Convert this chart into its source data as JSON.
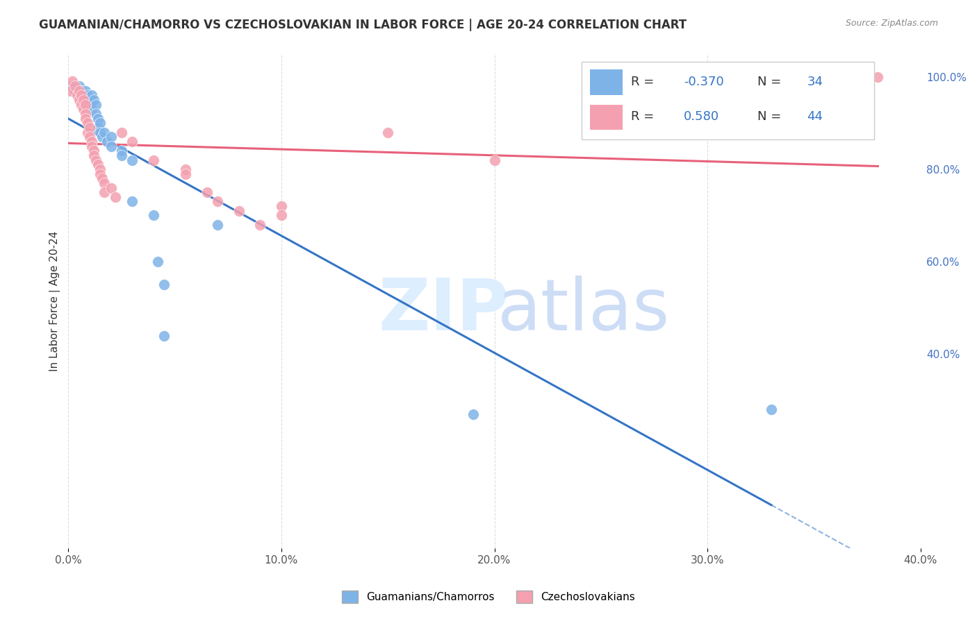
{
  "title": "GUAMANIAN/CHAMORRO VS CZECHOSLOVAKIAN IN LABOR FORCE | AGE 20-24 CORRELATION CHART",
  "source": "Source: ZipAtlas.com",
  "ylabel": "In Labor Force | Age 20-24",
  "xlim": [
    0.0,
    0.4
  ],
  "ylim": [
    0.0,
    1.05
  ],
  "xtick_labels": [
    "0.0%",
    "10.0%",
    "20.0%",
    "30.0%",
    "40.0%"
  ],
  "xtick_vals": [
    0.0,
    0.1,
    0.2,
    0.3,
    0.4
  ],
  "ytick_labels": [
    "100.0%",
    "80.0%",
    "60.0%",
    "40.0%"
  ],
  "ytick_vals": [
    1.0,
    0.8,
    0.6,
    0.4
  ],
  "blue_color": "#7EB3E8",
  "pink_color": "#F4A0B0",
  "blue_line_color": "#3575C5",
  "pink_line_color": "#E8607A",
  "legend_R_blue": "-0.370",
  "legend_N_blue": "34",
  "legend_R_pink": "0.580",
  "legend_N_pink": "44",
  "blue_points": [
    [
      0.002,
      0.98
    ],
    [
      0.003,
      0.97
    ],
    [
      0.005,
      0.98
    ],
    [
      0.006,
      0.97
    ],
    [
      0.007,
      0.96
    ],
    [
      0.008,
      0.97
    ],
    [
      0.009,
      0.96
    ],
    [
      0.01,
      0.95
    ],
    [
      0.01,
      0.94
    ],
    [
      0.011,
      0.93
    ],
    [
      0.011,
      0.96
    ],
    [
      0.012,
      0.95
    ],
    [
      0.013,
      0.94
    ],
    [
      0.013,
      0.92
    ],
    [
      0.014,
      0.91
    ],
    [
      0.014,
      0.89
    ],
    [
      0.015,
      0.9
    ],
    [
      0.015,
      0.88
    ],
    [
      0.016,
      0.87
    ],
    [
      0.017,
      0.88
    ],
    [
      0.018,
      0.86
    ],
    [
      0.02,
      0.87
    ],
    [
      0.02,
      0.85
    ],
    [
      0.025,
      0.84
    ],
    [
      0.025,
      0.83
    ],
    [
      0.03,
      0.82
    ],
    [
      0.03,
      0.73
    ],
    [
      0.04,
      0.7
    ],
    [
      0.042,
      0.6
    ],
    [
      0.045,
      0.55
    ],
    [
      0.045,
      0.44
    ],
    [
      0.07,
      0.68
    ],
    [
      0.19,
      0.27
    ],
    [
      0.33,
      0.28
    ]
  ],
  "pink_points": [
    [
      0.001,
      0.97
    ],
    [
      0.002,
      0.99
    ],
    [
      0.003,
      0.98
    ],
    [
      0.004,
      0.96
    ],
    [
      0.005,
      0.97
    ],
    [
      0.005,
      0.95
    ],
    [
      0.006,
      0.94
    ],
    [
      0.006,
      0.96
    ],
    [
      0.007,
      0.95
    ],
    [
      0.007,
      0.93
    ],
    [
      0.008,
      0.94
    ],
    [
      0.008,
      0.92
    ],
    [
      0.008,
      0.91
    ],
    [
      0.009,
      0.9
    ],
    [
      0.009,
      0.88
    ],
    [
      0.01,
      0.89
    ],
    [
      0.01,
      0.87
    ],
    [
      0.011,
      0.86
    ],
    [
      0.011,
      0.85
    ],
    [
      0.012,
      0.84
    ],
    [
      0.012,
      0.83
    ],
    [
      0.013,
      0.82
    ],
    [
      0.014,
      0.81
    ],
    [
      0.015,
      0.8
    ],
    [
      0.015,
      0.79
    ],
    [
      0.016,
      0.78
    ],
    [
      0.017,
      0.77
    ],
    [
      0.017,
      0.75
    ],
    [
      0.02,
      0.76
    ],
    [
      0.022,
      0.74
    ],
    [
      0.025,
      0.88
    ],
    [
      0.03,
      0.86
    ],
    [
      0.04,
      0.82
    ],
    [
      0.055,
      0.8
    ],
    [
      0.055,
      0.79
    ],
    [
      0.065,
      0.75
    ],
    [
      0.07,
      0.73
    ],
    [
      0.08,
      0.71
    ],
    [
      0.09,
      0.68
    ],
    [
      0.1,
      0.72
    ],
    [
      0.1,
      0.7
    ],
    [
      0.15,
      0.88
    ],
    [
      0.2,
      0.82
    ],
    [
      0.38,
      1.0
    ]
  ]
}
